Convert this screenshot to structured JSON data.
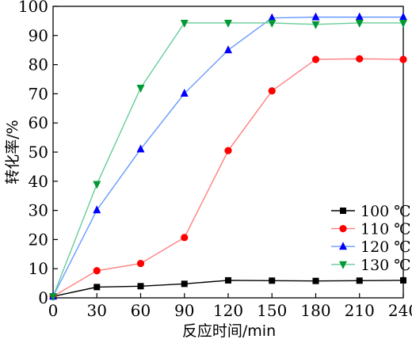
{
  "chart_data": {
    "type": "line",
    "title": "",
    "xlabel": "反应时间/min",
    "ylabel": "转化率/%",
    "x": [
      0,
      30,
      60,
      90,
      120,
      150,
      180,
      210,
      240
    ],
    "xlim": [
      0,
      240
    ],
    "ylim": [
      0,
      100
    ],
    "xticks": [
      "0",
      "30",
      "60",
      "90",
      "120",
      "150",
      "180",
      "210",
      "240"
    ],
    "yticks": [
      "0",
      "10",
      "20",
      "30",
      "40",
      "50",
      "60",
      "70",
      "80",
      "90",
      "100"
    ],
    "grid": false,
    "legend_position": "lower-right",
    "series": [
      {
        "name": "100 ℃",
        "marker": "square",
        "line_color": "#000000",
        "marker_color": "#000000",
        "values": [
          0.5,
          3.7,
          4.0,
          4.8,
          6.0,
          5.9,
          5.8,
          5.9,
          6.0
        ]
      },
      {
        "name": "110 ℃",
        "marker": "circle",
        "line_color": "#ff8080",
        "marker_color": "#ff0000",
        "values": [
          0.5,
          9.3,
          11.8,
          20.7,
          50.5,
          71.0,
          81.8,
          82.0,
          81.8
        ]
      },
      {
        "name": "120 ℃",
        "marker": "triangle-up",
        "line_color": "#6699ff",
        "marker_color": "#0000ff",
        "values": [
          0.5,
          30.1,
          51.0,
          70.1,
          85.0,
          96.0,
          96.3,
          96.3,
          96.3
        ]
      },
      {
        "name": "130 ℃",
        "marker": "triangle-down",
        "line_color": "#66cc99",
        "marker_color": "#009933",
        "values": [
          0.5,
          39.0,
          72.0,
          94.3,
          94.3,
          94.3,
          93.8,
          94.3,
          94.3
        ]
      }
    ]
  }
}
